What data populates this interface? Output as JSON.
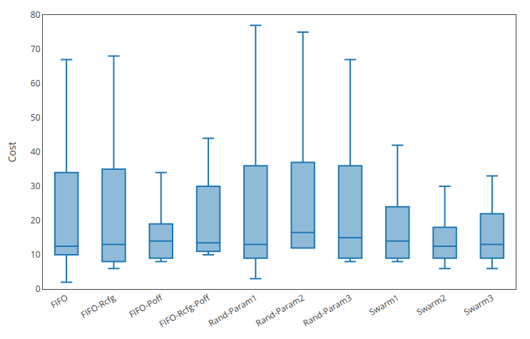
{
  "chart_data": {
    "type": "box",
    "categories": [
      "FIFO",
      "FIFO-Rcfg",
      "FIFO-Poff",
      "FIFO-Rcfg-Poff",
      "Rand-Param1",
      "Rand-Param2",
      "Rand-Param3",
      "Swarm1",
      "Swarm2",
      "Swarm3"
    ],
    "whislo": [
      2.0,
      6.0,
      8.0,
      10.0,
      3.0,
      12.0,
      8.0,
      8.0,
      6.0,
      6.0
    ],
    "q1": [
      10.0,
      8.0,
      9.0,
      11.0,
      9.0,
      12.0,
      9.0,
      9.0,
      9.0,
      9.0
    ],
    "median": [
      12.5,
      13.0,
      14.0,
      13.5,
      13.0,
      16.5,
      15.0,
      14.0,
      12.5,
      13.0
    ],
    "q3": [
      34.0,
      35.0,
      19.0,
      30.0,
      36.0,
      37.0,
      36.0,
      24.0,
      18.0,
      22.0
    ],
    "whishi": [
      67.0,
      68.0,
      34.0,
      44.0,
      77.0,
      75.0,
      67.0,
      42.0,
      30.0,
      33.0
    ],
    "ylabel": "Cost",
    "ylim": [
      0,
      80
    ],
    "yticks": [
      0,
      10,
      20,
      30,
      40,
      50,
      60,
      70,
      80
    ],
    "grid": false
  }
}
